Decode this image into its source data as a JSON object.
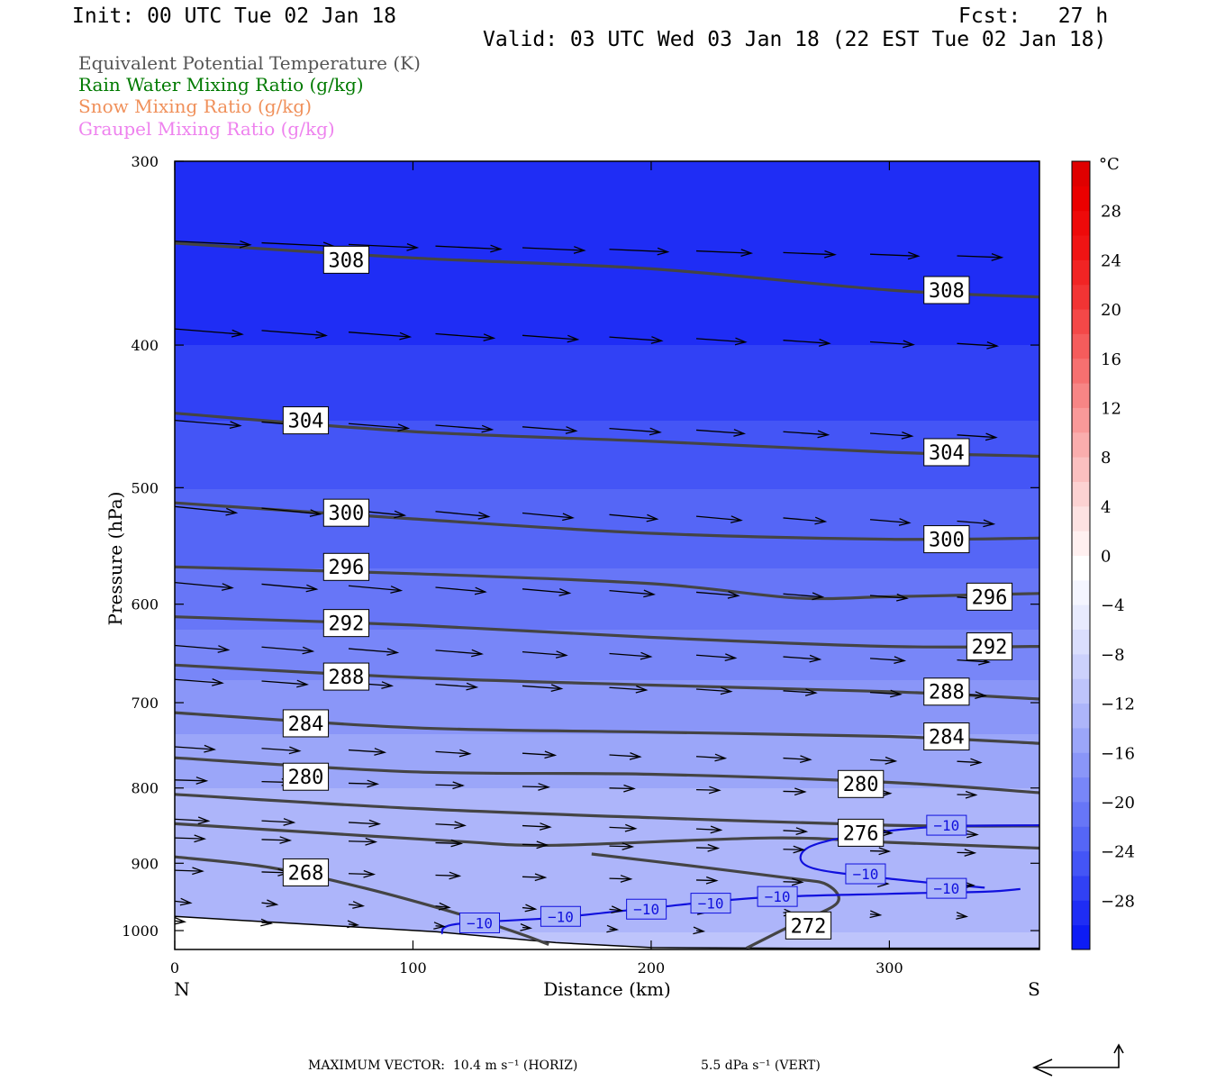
{
  "header": {
    "init": "Init: 00 UTC Tue 02 Jan 18",
    "fcst": "Fcst:   27 h",
    "valid": "Valid: 03 UTC Wed 03 Jan 18 (22 EST Tue 02 Jan 18)"
  },
  "fields": [
    {
      "label": "Equivalent Potential Temperature (K)",
      "color": "#555555"
    },
    {
      "label": "Rain Water Mixing Ratio (g/kg)",
      "color": "#007a00"
    },
    {
      "label": "Snow Mixing Ratio (g/kg)",
      "color": "#f0905a"
    },
    {
      "label": "Graupel Mixing Ratio (g/kg)",
      "color": "#ee82ee"
    }
  ],
  "footer": {
    "max_label": "MAXIMUM VECTOR:",
    "horiz": "10.4 m s⁻¹ (HORIZ)",
    "vert": "5.5 dPa s⁻¹ (VERT)"
  },
  "chart_data": {
    "type": "cross-section",
    "xlabel": "Distance (km)",
    "ylabel": "Pressure (hPa)",
    "xlim": [
      0,
      363
    ],
    "ylim": [
      300,
      1030
    ],
    "y_scale": "log",
    "x_ticks": [
      0,
      100,
      200,
      300
    ],
    "y_ticks": [
      300,
      400,
      500,
      600,
      700,
      800,
      900,
      1000
    ],
    "x_end_labels": {
      "left": "N",
      "right": "S"
    },
    "colorbar": {
      "unit": "°C",
      "tick_labels": [
        "28",
        "24",
        "20",
        "16",
        "12",
        "8",
        "4",
        "0",
        "−4",
        "−8",
        "−12",
        "−16",
        "−20",
        "−24",
        "−28"
      ],
      "tick_values": [
        28,
        24,
        20,
        16,
        12,
        8,
        4,
        0,
        -4,
        -8,
        -12,
        -16,
        -20,
        -24,
        -28
      ],
      "range": [
        -32,
        32
      ],
      "colors": [
        "#0d1cf5",
        "#1f2df5",
        "#3141f5",
        "#4455f6",
        "#5566f6",
        "#6776f7",
        "#7886f8",
        "#8a96f8",
        "#9ba6f9",
        "#adb5fa",
        "#bec4fb",
        "#ccd1fc",
        "#dadefd",
        "#e8ebfe",
        "#f4f5ff",
        "#ffffff",
        "#fff0f0",
        "#fde2e2",
        "#fcd2d2",
        "#fbc0c0",
        "#faadad",
        "#f99999",
        "#f78585",
        "#f67070",
        "#f55c5c",
        "#f44848",
        "#f23434",
        "#f12424",
        "#f01414",
        "#ee0a0a",
        "#ea0000",
        "#e00000"
      ]
    },
    "temperature_field": {
      "levels_hpa": [
        300,
        400,
        500,
        600,
        700,
        800,
        900,
        1000
      ],
      "values_c": [
        -30,
        -28,
        -24,
        -21,
        -17,
        -14,
        -13,
        -12
      ]
    },
    "theta_e_contours": [
      {
        "label": "308",
        "points": [
          [
            0,
            341
          ],
          [
            100,
            349
          ],
          [
            200,
            355
          ],
          [
            300,
            367
          ],
          [
            363,
            371
          ]
        ]
      },
      {
        "label": "304",
        "points": [
          [
            0,
            445
          ],
          [
            100,
            458
          ],
          [
            200,
            465
          ],
          [
            300,
            473
          ],
          [
            363,
            476
          ]
        ]
      },
      {
        "label": "300",
        "points": [
          [
            0,
            512
          ],
          [
            100,
            525
          ],
          [
            200,
            537
          ],
          [
            300,
            542
          ],
          [
            363,
            541
          ]
        ]
      },
      {
        "label": "296",
        "points": [
          [
            0,
            566
          ],
          [
            100,
            572
          ],
          [
            200,
            581
          ],
          [
            260,
            594
          ],
          [
            300,
            593
          ],
          [
            363,
            590
          ]
        ]
      },
      {
        "label": "292",
        "points": [
          [
            0,
            612
          ],
          [
            100,
            620
          ],
          [
            200,
            632
          ],
          [
            300,
            641
          ],
          [
            363,
            641
          ]
        ]
      },
      {
        "label": "288",
        "points": [
          [
            0,
            660
          ],
          [
            100,
            673
          ],
          [
            200,
            681
          ],
          [
            300,
            688
          ],
          [
            363,
            696
          ]
        ]
      },
      {
        "label": "284",
        "points": [
          [
            0,
            711
          ],
          [
            100,
            728
          ],
          [
            200,
            733
          ],
          [
            300,
            738
          ],
          [
            363,
            746
          ]
        ]
      },
      {
        "label": "280",
        "points": [
          [
            0,
            763
          ],
          [
            100,
            780
          ],
          [
            200,
            783
          ],
          [
            300,
            793
          ],
          [
            363,
            806
          ]
        ]
      },
      {
        "label": "",
        "points": [
          [
            0,
            808
          ],
          [
            100,
            826
          ],
          [
            200,
            838
          ],
          [
            300,
            848
          ],
          [
            363,
            849
          ]
        ]
      },
      {
        "label": "276",
        "points": [
          [
            0,
            846
          ],
          [
            60,
            858
          ],
          [
            120,
            870
          ],
          [
            160,
            875
          ],
          [
            250,
            865
          ],
          [
            300,
            871
          ],
          [
            363,
            879
          ]
        ]
      },
      {
        "label": "268",
        "points": [
          [
            0,
            891
          ],
          [
            40,
            906
          ],
          [
            80,
            936
          ],
          [
            120,
            975
          ],
          [
            145,
            1005
          ],
          [
            157,
            1022
          ]
        ]
      },
      {
        "label": "272",
        "points": [
          [
            175,
            887
          ],
          [
            220,
            905
          ],
          [
            260,
            922
          ],
          [
            274,
            931
          ],
          [
            278,
            958
          ],
          [
            260,
            990
          ],
          [
            240,
            1028
          ]
        ]
      }
    ],
    "temp_isotherm": {
      "label": "−10",
      "points": [
        [
          112,
          1005
        ],
        [
          118,
          990
        ],
        [
          160,
          980
        ],
        [
          200,
          965
        ],
        [
          245,
          950
        ],
        [
          300,
          944
        ],
        [
          340,
          941
        ],
        [
          355,
          937
        ]
      ],
      "branch": [
        [
          363,
          848
        ],
        [
          320,
          850
        ],
        [
          285,
          862
        ],
        [
          265,
          880
        ],
        [
          267,
          906
        ],
        [
          300,
          922
        ],
        [
          340,
          935
        ]
      ]
    },
    "terrain": [
      [
        0,
        978
      ],
      [
        60,
        991
      ],
      [
        110,
        1002
      ],
      [
        160,
        1019
      ],
      [
        200,
        1027
      ],
      [
        260,
        1028
      ],
      [
        363,
        1028
      ]
    ],
    "wind_vectors": "not tabulated"
  }
}
